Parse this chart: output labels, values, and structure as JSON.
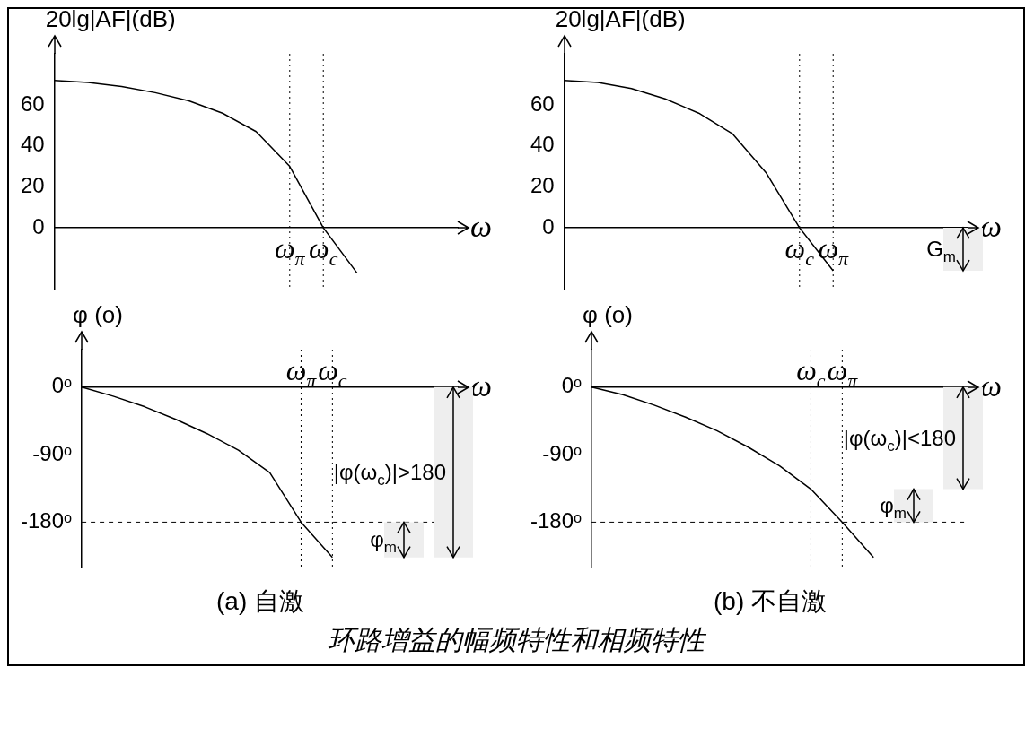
{
  "chart_data": [
    {
      "type": "line",
      "title": "环路增益的幅频特性和相频特性",
      "xlabel": "ω",
      "ylabel": "20lg|AF|(dB)",
      "ylim": [
        -30,
        85
      ],
      "yticks": [
        0,
        20,
        40,
        60
      ],
      "grid": false,
      "legend": false,
      "marker": "none",
      "line_style": "solid",
      "categories": [
        null,
        null,
        null,
        null,
        null,
        null,
        null,
        "ω$_{π}$",
        "ω$_{c}$",
        null,
        null,
        null,
        null
      ],
      "series": [
        {
          "color": "#000000",
          "values": [
            72,
            71,
            69,
            66,
            62,
            56,
            47,
            30,
            0,
            -22,
            null,
            null,
            null
          ]
        }
      ],
      "ref_lines": [
        {
          "axis": "x",
          "value": "ω$_{π}$",
          "line_style": "dotted"
        },
        {
          "axis": "x",
          "value": "ω$_{c}$",
          "line_style": "dotted"
        }
      ]
    },
    {
      "type": "line",
      "xlabel": "ω",
      "ylabel": "20lg|AF|(dB)",
      "ylim": [
        -30,
        85
      ],
      "yticks": [
        0,
        20,
        40,
        60
      ],
      "grid": false,
      "legend": false,
      "marker": "none",
      "line_style": "solid",
      "categories": [
        null,
        null,
        null,
        null,
        null,
        null,
        null,
        "ω$_{c}$",
        "ω$_{π}$",
        null,
        null,
        null,
        null
      ],
      "series": [
        {
          "color": "#000000",
          "values": [
            72,
            71,
            68,
            63,
            56,
            46,
            27,
            0,
            -21,
            null,
            null,
            null,
            null
          ]
        }
      ],
      "ref_lines": [
        {
          "axis": "x",
          "value": "ω$_{c}$",
          "line_style": "dotted"
        },
        {
          "axis": "x",
          "value": "ω$_{π}$",
          "line_style": "dotted"
        }
      ],
      "bands": [
        {
          "axis": "y",
          "from": -21,
          "to": 0,
          "label": "G$_{m}$"
        }
      ]
    },
    {
      "type": "line",
      "xlabel": "ω",
      "ylabel": "φ (o)",
      "ylim": [
        -240,
        50
      ],
      "yticks": [
        {
          "value": 0,
          "label": "0ᵒ"
        },
        {
          "value": -90,
          "label": "-90ᵒ"
        },
        {
          "value": -180,
          "label": "-180ᵒ"
        }
      ],
      "grid": false,
      "legend": false,
      "marker": "none",
      "line_style": "solid",
      "categories": [
        null,
        null,
        null,
        null,
        null,
        null,
        null,
        "ω$_{π}$",
        "ω$_{c}$",
        null,
        null,
        null,
        null
      ],
      "series": [
        {
          "color": "#000000",
          "values": [
            0,
            -12,
            -26,
            -43,
            -62,
            -84,
            -114,
            -180,
            -227,
            null,
            null,
            null,
            null
          ]
        }
      ],
      "ref_lines": [
        {
          "axis": "x",
          "value": "ω$_{π}$",
          "line_style": "dotted"
        },
        {
          "axis": "x",
          "value": "ω$_{c}$",
          "line_style": "dotted"
        },
        {
          "axis": "y",
          "value": -180,
          "line_style": "dashed"
        }
      ],
      "bands": [
        {
          "axis": "y",
          "from": -227,
          "to": 0,
          "label": "|φ(ω$_{c}$)|>180"
        },
        {
          "axis": "y",
          "from": -227,
          "to": -180,
          "label": "φ$_{m}$"
        }
      ],
      "annotations": [
        "(a) 自激"
      ]
    },
    {
      "type": "line",
      "xlabel": "ω",
      "ylabel": "φ (o)",
      "ylim": [
        -240,
        50
      ],
      "yticks": [
        {
          "value": 0,
          "label": "0ᵒ"
        },
        {
          "value": -90,
          "label": "-90ᵒ"
        },
        {
          "value": -180,
          "label": "-180ᵒ"
        }
      ],
      "grid": false,
      "legend": false,
      "marker": "none",
      "line_style": "solid",
      "categories": [
        null,
        null,
        null,
        null,
        null,
        null,
        null,
        "ω$_{c}$",
        "ω$_{π}$",
        null,
        null,
        null,
        null
      ],
      "series": [
        {
          "color": "#000000",
          "values": [
            0,
            -10,
            -24,
            -40,
            -58,
            -80,
            -105,
            -136,
            -180,
            -227,
            null,
            null,
            null
          ]
        }
      ],
      "ref_lines": [
        {
          "axis": "x",
          "value": "ω$_{c}$",
          "line_style": "dotted"
        },
        {
          "axis": "x",
          "value": "ω$_{π}$",
          "line_style": "dotted"
        },
        {
          "axis": "y",
          "value": -180,
          "line_style": "dashed"
        }
      ],
      "bands": [
        {
          "axis": "y",
          "from": -136,
          "to": 0,
          "label": "|φ(ω$_{c}$)|<180"
        },
        {
          "axis": "y",
          "from": -180,
          "to": -136,
          "label": "φ$_{m}$"
        }
      ],
      "annotations": [
        "(b) 不自激"
      ]
    }
  ]
}
